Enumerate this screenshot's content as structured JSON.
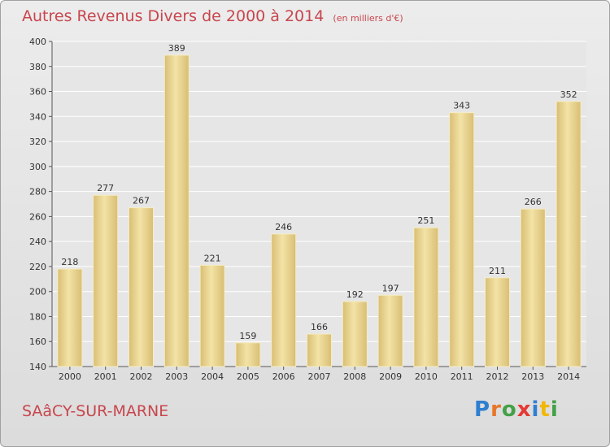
{
  "chart_data": {
    "type": "bar",
    "title": "Autres Revenus Divers de 2000 à 2014",
    "unit_label": "(en milliers d'€)",
    "categories": [
      "2000",
      "2001",
      "2002",
      "2003",
      "2004",
      "2005",
      "2006",
      "2007",
      "2008",
      "2009",
      "2010",
      "2011",
      "2012",
      "2013",
      "2014"
    ],
    "values": [
      218,
      277,
      267,
      389,
      221,
      159,
      246,
      166,
      192,
      197,
      251,
      343,
      211,
      266,
      352
    ],
    "ylim": [
      140,
      400
    ],
    "yticks": [
      140,
      160,
      180,
      200,
      220,
      240,
      260,
      280,
      300,
      320,
      340,
      360,
      380,
      400
    ],
    "grid": true,
    "bar_color": "#d8be74",
    "bar_highlight": "#f3e3a6"
  },
  "footer": {
    "commune": "SAâCY-SUR-MARNE",
    "logo_text": "Proxiti",
    "logo_colors": [
      "#2f7fd0",
      "#e8762a",
      "#43a047",
      "#e53935",
      "#2f7fd0",
      "#f2b705",
      "#43a047"
    ]
  }
}
